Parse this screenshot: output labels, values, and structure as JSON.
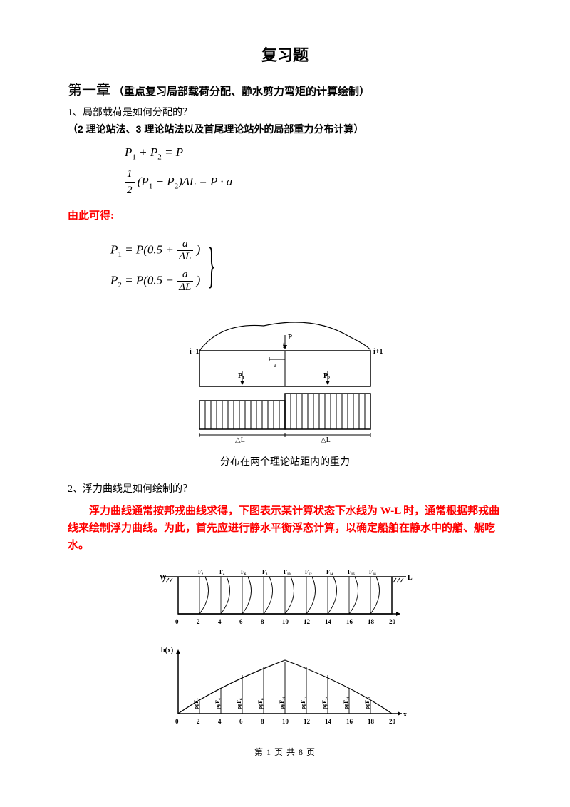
{
  "title": "复习题",
  "chapter": {
    "num": "第一章",
    "paren": "（重点复习局部载荷分配、静水剪力弯矩的计算绘制）"
  },
  "q1": {
    "label": "1、局部载荷是如何分配的？",
    "note": "（2 理论站法、3 理论站法以及首尾理论站外的局部重力分布计算）"
  },
  "eq1": {
    "line1": "P₁ + P₂ = P",
    "line2_html": true
  },
  "red1": "由此可得:",
  "eq2": {
    "r1_left": "P₁ = P(0.5 + ",
    "r1_num": "a",
    "r1_den": "ΔL",
    "r1_right": ")",
    "r2_left": "P₂ = P(0.5 − ",
    "r2_num": "a",
    "r2_den": "ΔL",
    "r2_right": ")"
  },
  "fig1_caption": "分布在两个理论站距内的重力",
  "q2": "2、浮力曲线是如何绘制的？",
  "red2": "浮力曲线通常按邦戎曲线求得，下图表示某计算状态下水线为 W-L 时，通常根据邦戎曲线来绘制浮力曲线。为此，首先应进行静水平衡浮态计算，以确定船舶在静水中的艏、艉吃水。",
  "fig1": {
    "bg": "#ffffff",
    "stroke": "#000000",
    "labels": {
      "left": "i−1",
      "right": "i+1",
      "mid": "i",
      "p": "P",
      "p1": "P₁",
      "p2": "P₂",
      "a": "a",
      "dL": "△L"
    }
  },
  "fig2": {
    "bg": "#ffffff",
    "stroke": "#000000",
    "W": "W",
    "L": "L",
    "xticks": [
      "0",
      "2",
      "4",
      "6",
      "8",
      "10",
      "12",
      "14",
      "16",
      "18",
      "20"
    ],
    "Flabels": [
      "F₂",
      "F₄",
      "F₆",
      "F₈",
      "F₁₀",
      "F₁₂",
      "F₁₄",
      "F₁₆",
      "F₁₈"
    ]
  },
  "fig3": {
    "bg": "#ffffff",
    "stroke": "#000000",
    "ylabel": "b(x)",
    "xlabel": "x",
    "xticks": [
      "0",
      "2",
      "4",
      "6",
      "8",
      "10",
      "12",
      "14",
      "16",
      "18",
      "20"
    ],
    "bar_labels": [
      "ρgF₂",
      "ρgF₄",
      "ρgF₆",
      "ρgF₈",
      "ρgF₁₀",
      "ρgF₁₂",
      "ρgF₁₄",
      "ρgF₁₆",
      "ρgF₁₈"
    ],
    "heights": [
      18,
      36,
      54,
      66,
      72,
      66,
      54,
      36,
      18
    ],
    "curve_height": 75
  },
  "footer": {
    "prefix": "第 ",
    "page": "1",
    "mid": " 页 共 ",
    "total": "8",
    "suffix": " 页"
  }
}
